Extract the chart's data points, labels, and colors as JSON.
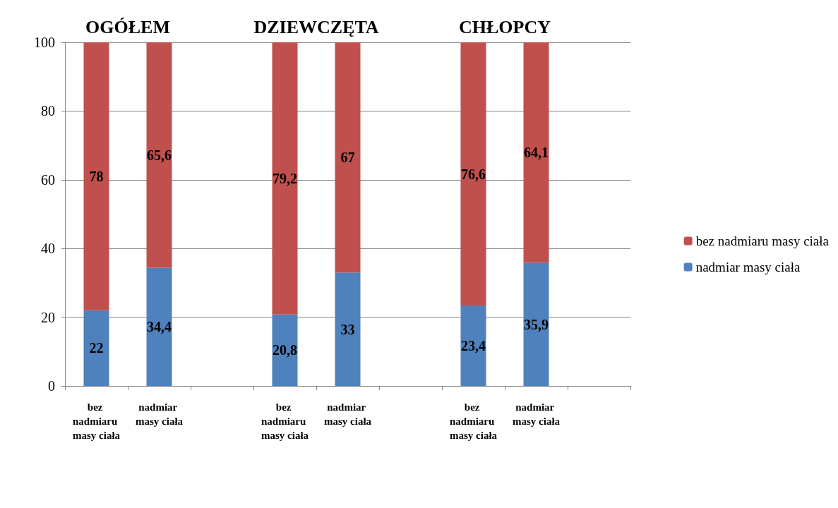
{
  "chart_data": {
    "type": "bar",
    "stacked": true,
    "categories": [
      "bez nadmiaru masy ciała",
      "nadmiar masy ciała",
      null,
      "bez nadmiaru masy ciała",
      "nadmiar masy ciała",
      null,
      "bez nadmiaru masy ciała",
      "nadmiar masy ciała",
      null
    ],
    "series": [
      {
        "name": "nadmiar masy ciała",
        "color": "#4f81bd",
        "values": [
          22,
          34.4,
          null,
          20.8,
          33,
          null,
          23.4,
          35.9,
          null
        ],
        "value_labels": [
          "22",
          "34,4",
          null,
          "20,8",
          "33",
          null,
          "23,4",
          "35,9",
          null
        ]
      },
      {
        "name": "bez nadmiaru masy ciała",
        "color": "#c0504d",
        "values": [
          78,
          65.6,
          null,
          79.2,
          67,
          null,
          76.6,
          64.1,
          null
        ],
        "value_labels": [
          "78",
          "65,6",
          null,
          "79,2",
          "67",
          null,
          "76,6",
          "64,1",
          null
        ]
      }
    ],
    "annotations": [
      "OGÓŁEM",
      "DZIEWCZĘTA",
      "CHŁOPCY"
    ],
    "ylim": [
      0,
      100
    ],
    "yticks": [
      0,
      20,
      40,
      60,
      80,
      100
    ],
    "grid": "y",
    "legend": "right"
  }
}
